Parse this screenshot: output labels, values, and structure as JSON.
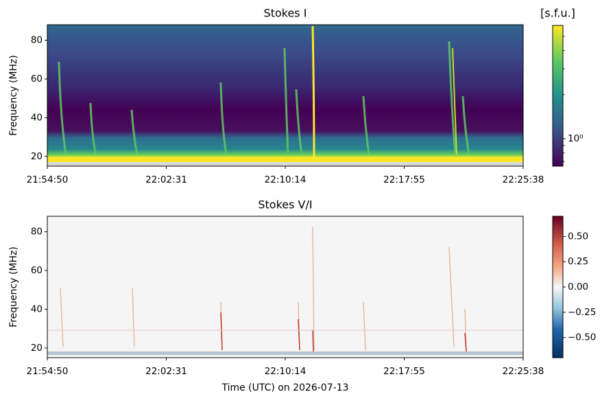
{
  "chart_data": [
    {
      "type": "heatmap",
      "title": "Stokes I",
      "ylabel": "Frequency (MHz)",
      "xticks": [
        "21:54:50",
        "22:02:31",
        "22:10:14",
        "22:17:55",
        "22:25:38"
      ],
      "ylim": [
        15,
        88
      ],
      "yticks": [
        20,
        40,
        60,
        80
      ],
      "colorbar": {
        "label": "[s.f.u.]",
        "scale": "log",
        "cmap": "viridis",
        "clim": [
          0.65,
          6
        ],
        "ticks": [
          {
            "value": 1,
            "label": "10⁰"
          }
        ]
      }
    },
    {
      "type": "heatmap",
      "title": "Stokes V/I",
      "ylabel": "Frequency (MHz)",
      "xlabel": "Time (UTC) on 2026-07-13",
      "xticks": [
        "21:54:50",
        "22:02:31",
        "22:10:14",
        "22:17:55",
        "22:25:38"
      ],
      "ylim": [
        15,
        88
      ],
      "yticks": [
        20,
        40,
        60,
        80
      ],
      "colorbar": {
        "scale": "linear",
        "cmap": "RdBu_r",
        "clim": [
          -0.7,
          0.7
        ],
        "ticks": [
          {
            "value": -0.5,
            "label": "−0.50"
          },
          {
            "value": -0.25,
            "label": "−0.25"
          },
          {
            "value": 0,
            "label": "0.00"
          },
          {
            "value": 0.25,
            "label": "0.25"
          },
          {
            "value": 0.5,
            "label": "0.50"
          }
        ]
      }
    }
  ]
}
